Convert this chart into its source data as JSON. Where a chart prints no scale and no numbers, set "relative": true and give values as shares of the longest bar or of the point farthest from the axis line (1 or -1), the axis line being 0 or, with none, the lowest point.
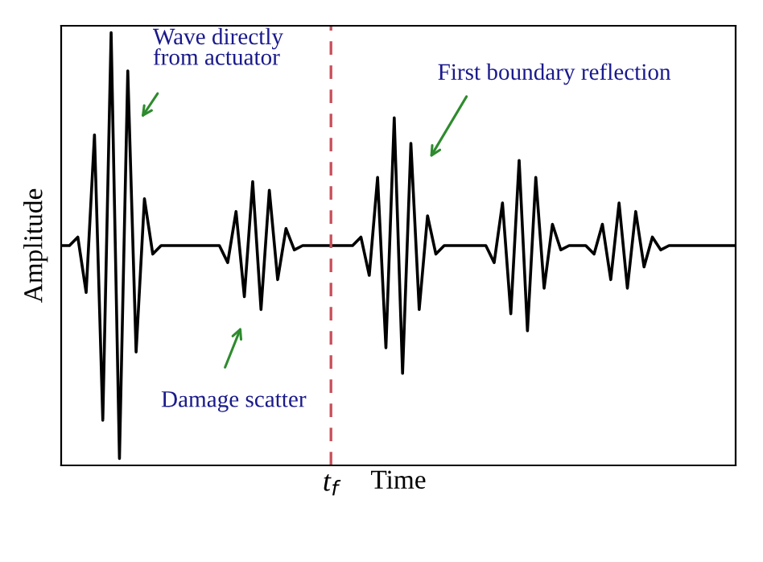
{
  "chart_data": {
    "type": "line",
    "relative": true,
    "xlabel": "Time",
    "ylabel": "Amplitude",
    "legend": false,
    "marker": "none",
    "line_style": "solid",
    "categories": [
      null,
      null,
      null,
      null,
      null,
      null,
      null,
      null,
      null,
      null,
      null,
      null,
      null,
      null,
      null,
      null,
      null,
      null,
      null,
      null,
      null,
      null,
      null,
      null,
      null,
      null,
      null,
      null,
      null,
      null,
      null,
      null,
      null,
      null,
      null,
      null,
      null,
      null,
      null,
      null,
      null,
      null,
      null,
      null,
      null,
      null,
      null,
      null,
      null,
      null,
      null,
      null,
      null,
      null,
      null,
      null,
      null,
      null,
      null,
      null,
      null,
      null,
      null,
      null,
      null,
      null,
      null,
      null,
      null,
      null,
      null,
      null,
      null,
      null,
      null,
      null,
      null,
      null,
      null,
      null,
      null,
      null
    ],
    "annotations": [
      "Wave directly\nfrom actuator",
      "Damage scatter",
      "First boundary reflection",
      "t$_{f}$"
    ],
    "series": [
      {
        "color": "#000000",
        "values": [
          0.5,
          0.5,
          0.52,
          0.39,
          0.76,
          0.09,
          1.0,
          0.0,
          0.91,
          0.25,
          0.61,
          0.48,
          0.5,
          0.5,
          0.5,
          0.5,
          0.5,
          0.5,
          0.5,
          0.5,
          0.46,
          0.58,
          0.38,
          0.65,
          0.35,
          0.63,
          0.42,
          0.54,
          0.49,
          0.5,
          0.5,
          0.5,
          0.5,
          0.5,
          0.5,
          0.5,
          0.52,
          0.43,
          0.66,
          0.26,
          0.8,
          0.2,
          0.74,
          0.35,
          0.57,
          0.48,
          0.5,
          0.5,
          0.5,
          0.5,
          0.5,
          0.5,
          0.46,
          0.6,
          0.34,
          0.7,
          0.3,
          0.66,
          0.4,
          0.55,
          0.49,
          0.5,
          0.5,
          0.5,
          0.48,
          0.55,
          0.42,
          0.6,
          0.4,
          0.58,
          0.45,
          0.52,
          0.49,
          0.5,
          0.5,
          0.5,
          0.5,
          0.5,
          0.5,
          0.5,
          0.5,
          0.5
        ]
      }
    ]
  }
}
